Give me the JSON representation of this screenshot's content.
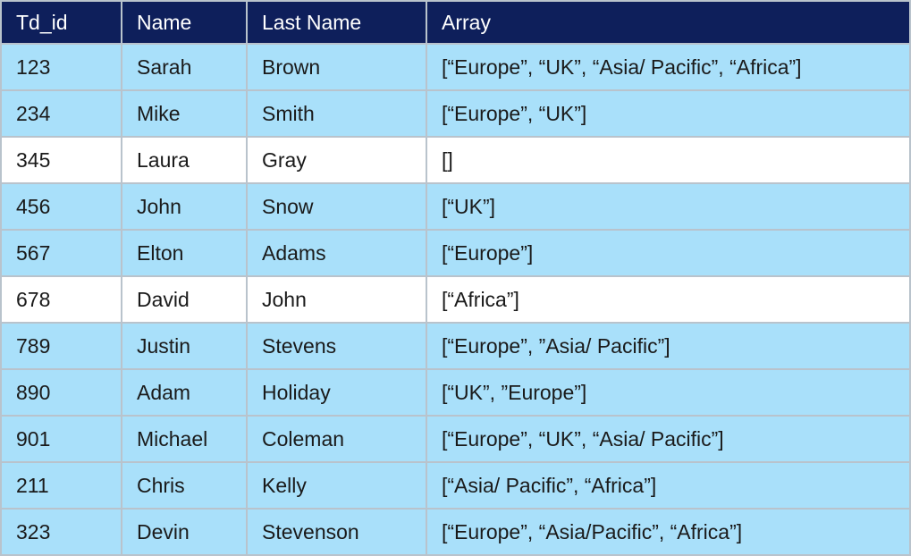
{
  "table": {
    "headers": [
      "Td_id",
      "Name",
      "Last Name",
      "Array"
    ],
    "rows": [
      {
        "id": "123",
        "name": "Sarah",
        "last": "Brown",
        "array": "[“Europe”, “UK”, “Asia/ Pacific”, “Africa”]",
        "highlight": true
      },
      {
        "id": "234",
        "name": "Mike",
        "last": "Smith",
        "array": "[“Europe”, “UK”]",
        "highlight": true
      },
      {
        "id": "345",
        "name": "Laura",
        "last": "Gray",
        "array": "[]",
        "highlight": false
      },
      {
        "id": "456",
        "name": "John",
        "last": "Snow",
        "array": "[“UK”]",
        "highlight": true
      },
      {
        "id": "567",
        "name": "Elton",
        "last": "Adams",
        "array": "[“Europe”]",
        "highlight": true
      },
      {
        "id": "678",
        "name": "David",
        "last": "John",
        "array": "[“Africa”]",
        "highlight": false
      },
      {
        "id": "789",
        "name": "Justin",
        "last": "Stevens",
        "array": "[“Europe”, ”Asia/ Pacific”]",
        "highlight": true
      },
      {
        "id": "890",
        "name": "Adam",
        "last": "Holiday",
        "array": "[“UK”, ”Europe”]",
        "highlight": true
      },
      {
        "id": "901",
        "name": "Michael",
        "last": "Coleman",
        "array": "[“Europe”, “UK”, “Asia/ Pacific”]",
        "highlight": true
      },
      {
        "id": "211",
        "name": "Chris",
        "last": "Kelly",
        "array": "[“Asia/ Pacific”, “Africa”]",
        "highlight": true
      },
      {
        "id": "323",
        "name": "Devin",
        "last": "Stevenson",
        "array": "[“Europe”, “Asia/Pacific”, “Africa”]",
        "highlight": true
      }
    ]
  },
  "colors": {
    "header": "#0e1f5b",
    "highlight_row": "#a9e0fa",
    "plain_row": "#ffffff"
  }
}
